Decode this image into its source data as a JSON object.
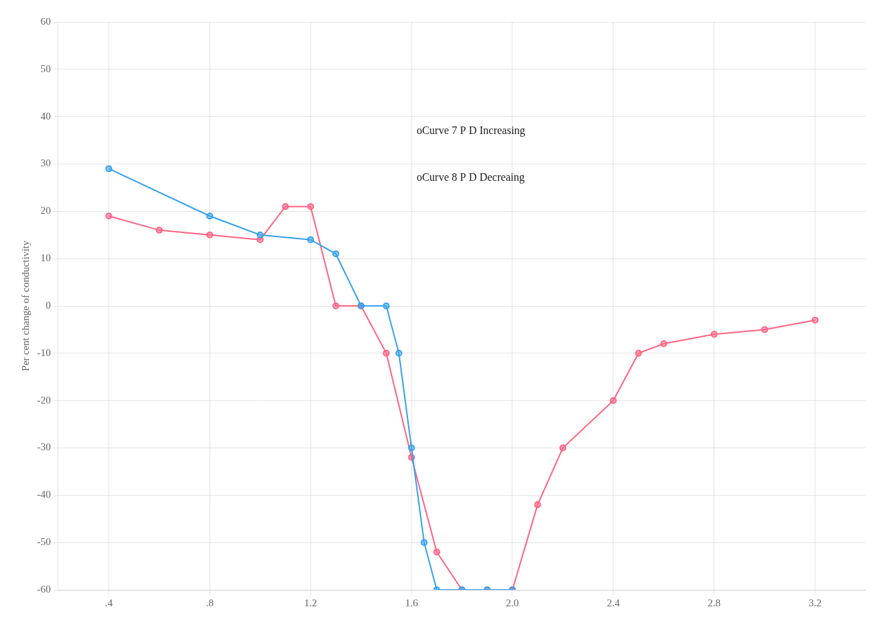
{
  "chart_data": {
    "type": "line",
    "ylabel": "Per cent change of conductivity",
    "series": [
      {
        "x": [
          0.4,
          0.8,
          1.0,
          1.2,
          1.3,
          1.4,
          1.5,
          1.55,
          1.6,
          1.65,
          1.7,
          1.8,
          1.9,
          2.0
        ],
        "values": [
          29,
          19,
          15,
          14,
          11,
          0,
          0,
          -10,
          -30,
          -50,
          -60,
          -60,
          -60,
          -60
        ],
        "marker": "circle"
      },
      {
        "x": [
          0.4,
          0.6,
          0.8,
          1.0,
          1.1,
          1.2,
          1.3,
          1.4,
          1.5,
          1.6,
          1.7,
          1.8,
          1.9,
          2.0,
          2.1,
          2.2,
          2.4,
          2.5,
          2.6,
          2.8,
          3.0,
          3.2
        ],
        "values": [
          19,
          16,
          15,
          14,
          21,
          21,
          0,
          0,
          -10,
          -32,
          -52,
          -60,
          -60,
          -60,
          -42,
          -30,
          -20,
          -10,
          -8,
          -6,
          -5,
          -3
        ],
        "marker": "circle"
      }
    ],
    "xlim": [
      0.2,
      3.4
    ],
    "ylim": [
      -60,
      60
    ],
    "xticks": [
      {
        "value": 0.4,
        "label": ".4"
      },
      {
        "value": 0.8,
        "label": ".8"
      },
      1.2,
      1.6,
      {
        "value": 2.0,
        "label": "2.0"
      },
      2.4,
      2.8,
      3.2
    ],
    "yticks": [
      -60,
      -50,
      -40,
      -30,
      -20,
      -10,
      0,
      10,
      20,
      30,
      40,
      50,
      60
    ],
    "grid": true,
    "annotations": [
      {
        "text": "oCurve 7 P D Increasing",
        "x": 1.62,
        "y": 37
      },
      {
        "text": "oCurve 8 P D Decreaing",
        "x": 1.62,
        "y": 27
      }
    ]
  }
}
